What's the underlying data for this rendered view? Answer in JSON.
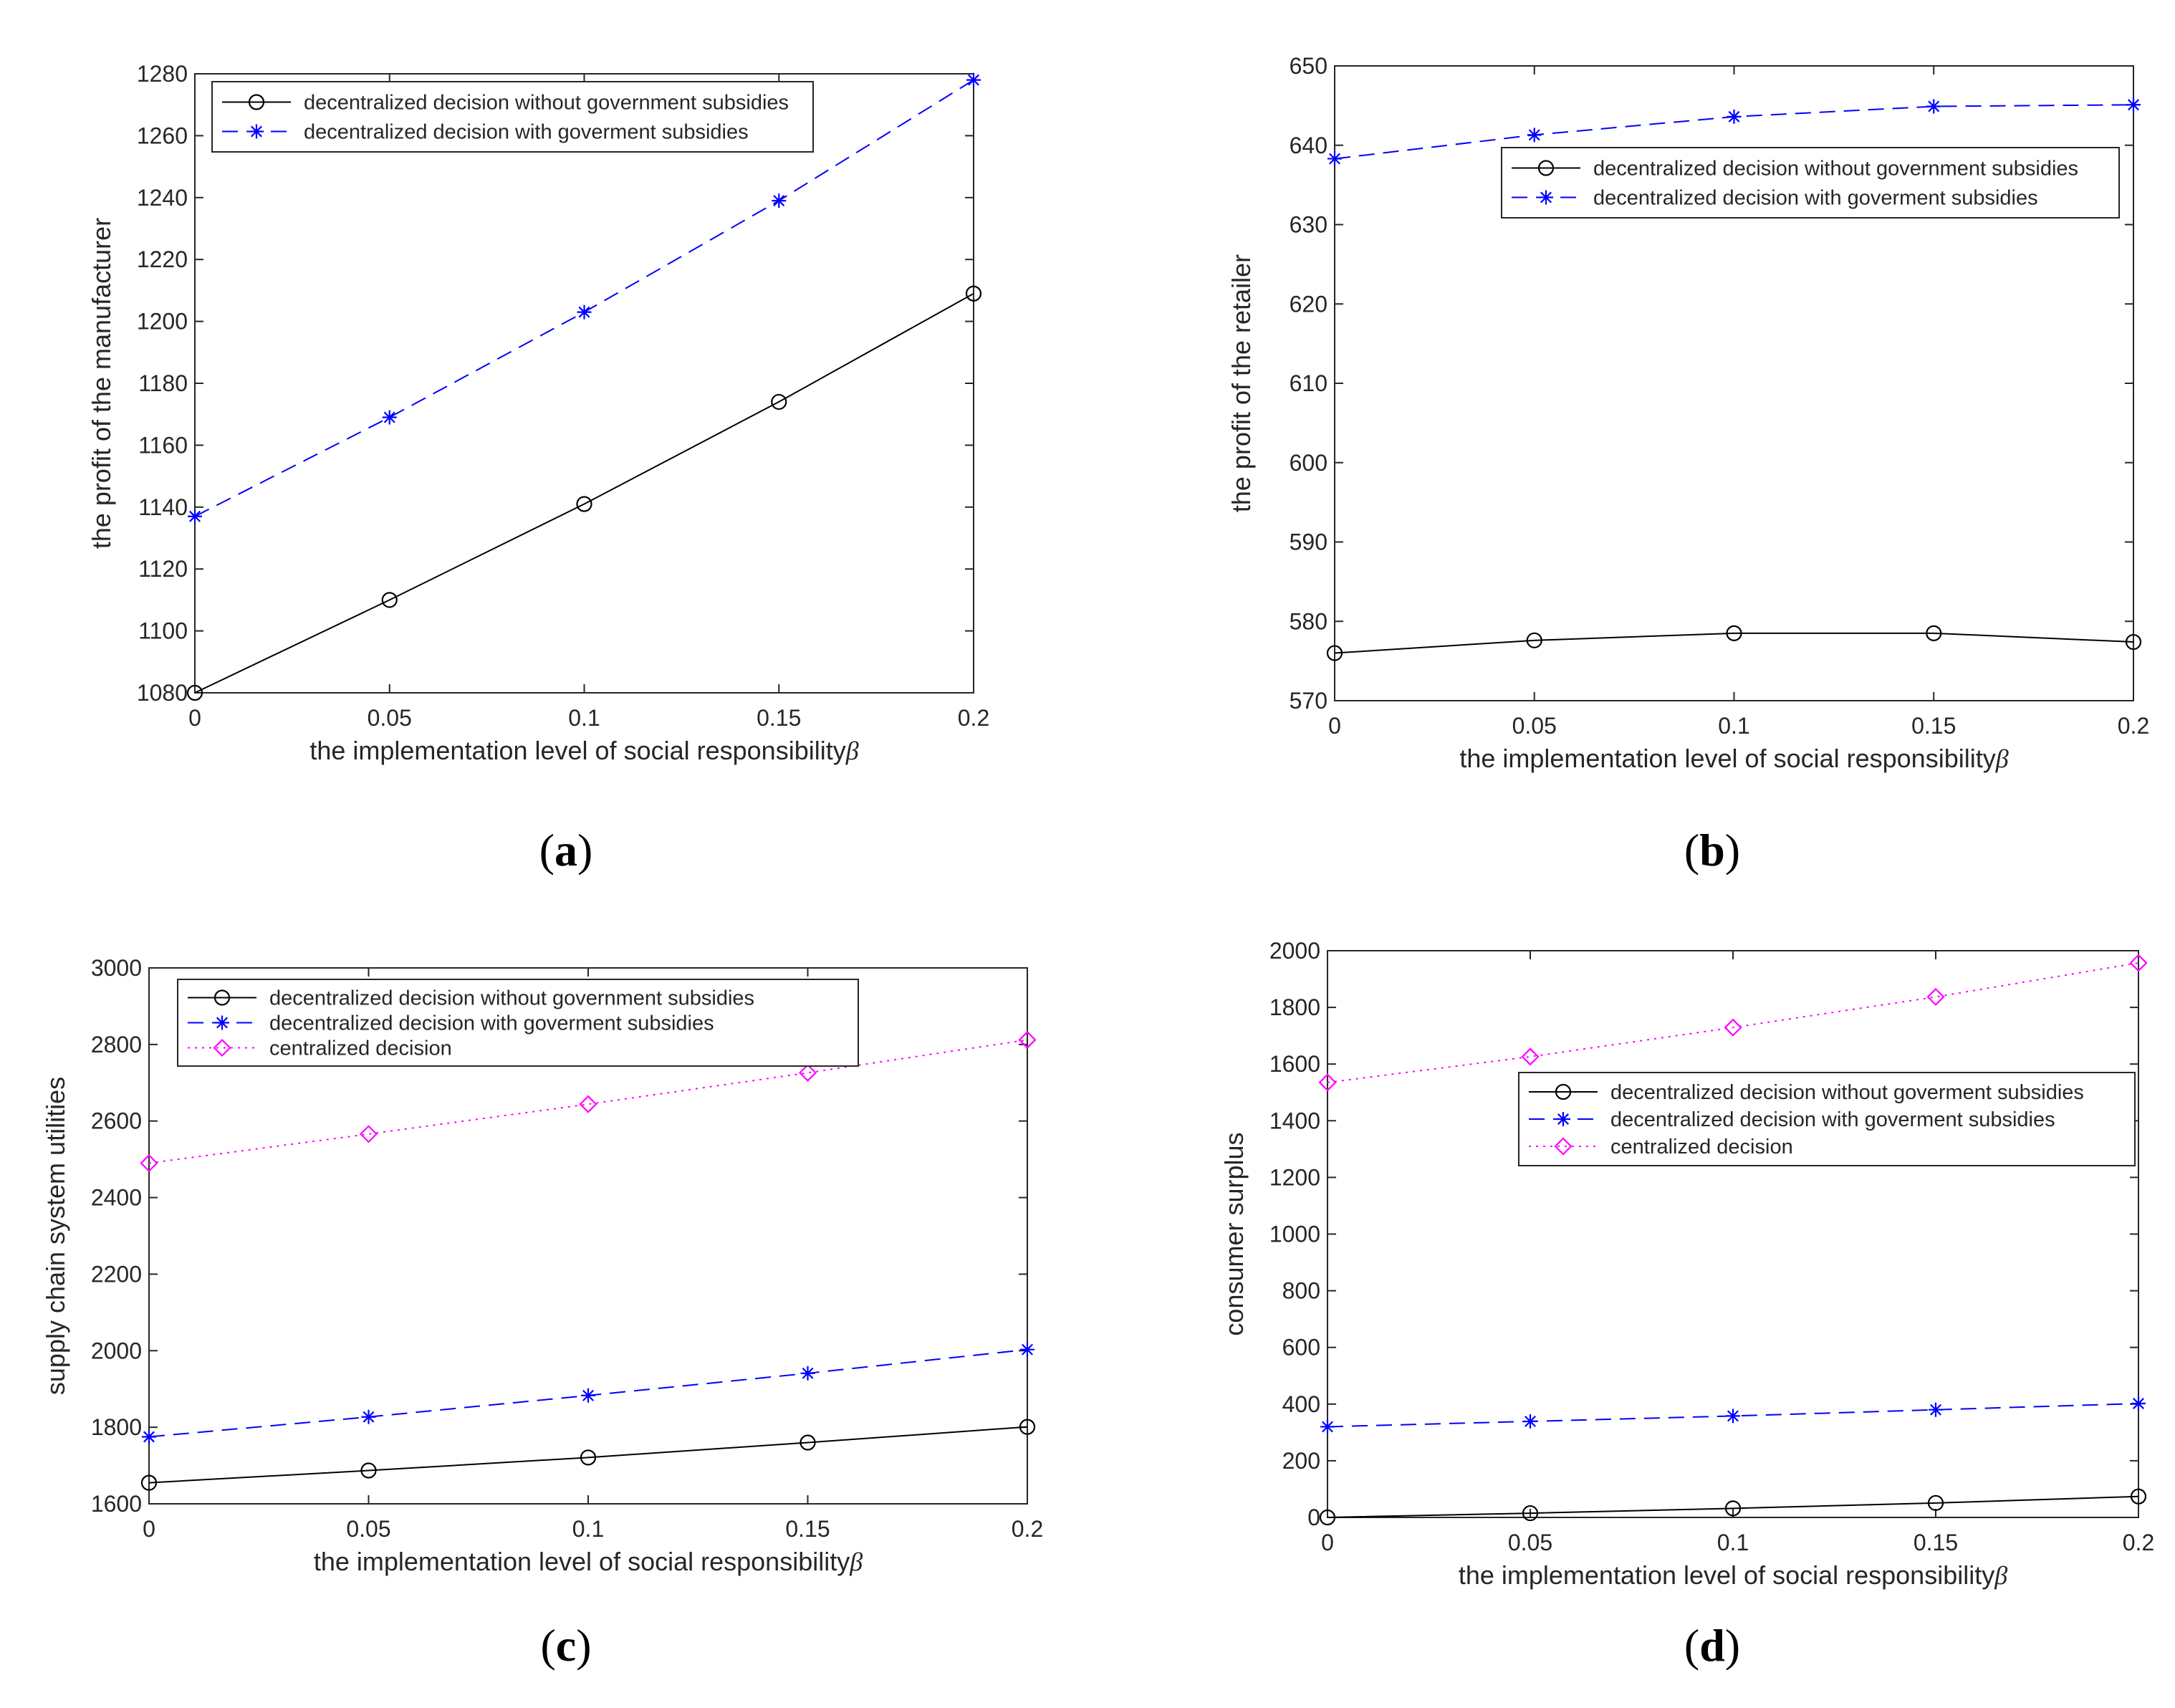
{
  "chart_data": [
    {
      "id": "a",
      "type": "line",
      "caption": "a",
      "xlabel": "the implementation level of social responsibility",
      "xlabel_symbol": "β",
      "ylabel": "the profit of the manufacturer",
      "x": [
        0,
        0.05,
        0.1,
        0.15,
        0.2
      ],
      "xticks": [
        "0",
        "0.05",
        "0.1",
        "0.15",
        "0.2"
      ],
      "xlim": [
        0,
        0.2
      ],
      "ylim": [
        1080,
        1280
      ],
      "yticks": [
        1080,
        1100,
        1120,
        1140,
        1160,
        1180,
        1200,
        1220,
        1240,
        1260,
        1280
      ],
      "legend": "top-left",
      "series": [
        {
          "name": "decentralized decision without government subsidies",
          "style": "circle",
          "values": [
            1080,
            1110,
            1141,
            1174,
            1209
          ]
        },
        {
          "name": "decentralized decision with goverment subsidies",
          "style": "star",
          "values": [
            1137,
            1169,
            1203,
            1239,
            1278
          ]
        }
      ]
    },
    {
      "id": "b",
      "type": "line",
      "caption": "b",
      "xlabel": "the implementation level of social responsibility",
      "xlabel_symbol": "β",
      "ylabel": "the profit of the retailer",
      "x": [
        0,
        0.05,
        0.1,
        0.15,
        0.2
      ],
      "xticks": [
        "0",
        "0.05",
        "0.1",
        "0.15",
        "0.2"
      ],
      "xlim": [
        0,
        0.2
      ],
      "ylim": [
        570,
        650
      ],
      "yticks": [
        570,
        580,
        590,
        600,
        610,
        620,
        630,
        640,
        650
      ],
      "legend": "top-right",
      "series": [
        {
          "name": "decentralized decision without government subsidies",
          "style": "circle",
          "values": [
            576,
            577.6,
            578.5,
            578.5,
            577.4
          ]
        },
        {
          "name": "decentralized decision with goverment subsidies",
          "style": "star",
          "values": [
            638.3,
            641.3,
            643.6,
            644.9,
            645.1
          ]
        }
      ]
    },
    {
      "id": "c",
      "type": "line",
      "caption": "c",
      "xlabel": "the implementation level of social responsibility",
      "xlabel_symbol": "β",
      "ylabel": "supply chain system utilities",
      "x": [
        0,
        0.05,
        0.1,
        0.15,
        0.2
      ],
      "xticks": [
        "0",
        "0.05",
        "0.1",
        "0.15",
        "0.2"
      ],
      "xlim": [
        0,
        0.2
      ],
      "ylim": [
        1600,
        3000
      ],
      "yticks": [
        1600,
        1800,
        2000,
        2200,
        2400,
        2600,
        2800,
        3000
      ],
      "legend": "top-left",
      "series": [
        {
          "name": "decentralized decision without government subsidies",
          "style": "circle",
          "values": [
            1655,
            1687,
            1721,
            1760,
            1801
          ]
        },
        {
          "name": "decentralized decision with goverment subsidies",
          "style": "star",
          "values": [
            1775,
            1827,
            1883,
            1941,
            2003
          ]
        },
        {
          "name": "centralized decision",
          "style": "diamond",
          "values": [
            2490,
            2566,
            2644,
            2726,
            2812
          ]
        }
      ]
    },
    {
      "id": "d",
      "type": "line",
      "caption": "d",
      "xlabel": "the implementation level of social responsibility",
      "xlabel_symbol": "β",
      "ylabel": "consumer surplus",
      "x": [
        0,
        0.05,
        0.1,
        0.15,
        0.2
      ],
      "xticks": [
        "0",
        "0.05",
        "0.1",
        "0.15",
        "0.2"
      ],
      "xlim": [
        0,
        0.2
      ],
      "ylim": [
        0,
        2000
      ],
      "yticks": [
        0,
        200,
        400,
        600,
        800,
        1000,
        1200,
        1400,
        1600,
        1800,
        2000
      ],
      "legend": "top-right",
      "series": [
        {
          "name": "decentralized decision without goverment subsidies",
          "style": "circle",
          "values": [
            0,
            15,
            32,
            51,
            74
          ]
        },
        {
          "name": "decentralized decision with goverment subsidies",
          "style": "star",
          "values": [
            320,
            339,
            358,
            380,
            402
          ]
        },
        {
          "name": "centralized decision",
          "style": "diamond",
          "values": [
            1535,
            1626,
            1729,
            1837,
            1957
          ]
        }
      ]
    }
  ]
}
